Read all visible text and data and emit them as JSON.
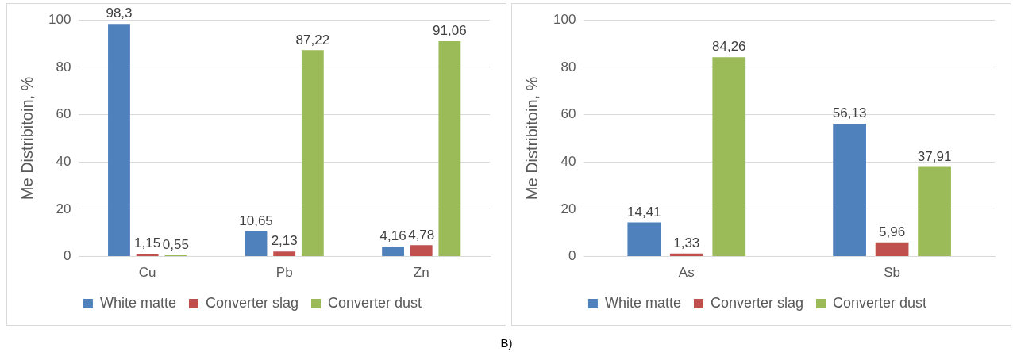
{
  "chart_data": [
    {
      "type": "bar",
      "ylabel": "Me Distribitoin, %",
      "categories": [
        "Cu",
        "Pb",
        "Zn"
      ],
      "ylim": [
        0,
        100
      ],
      "yticks": [
        0,
        20,
        40,
        60,
        80,
        100
      ],
      "grid": "y",
      "legend": "bottom",
      "series": [
        {
          "name": "White matte",
          "color": "#4f81bd",
          "values": [
            98.3,
            10.65,
            4.16
          ],
          "value_labels": [
            "98,3",
            "10,65",
            "4,16"
          ]
        },
        {
          "name": "Converter slag",
          "color": "#c0504d",
          "values": [
            1.15,
            2.13,
            4.78
          ],
          "value_labels": [
            "1,15",
            "2,13",
            "4,78"
          ]
        },
        {
          "name": "Converter dust",
          "color": "#9bbb59",
          "values": [
            0.55,
            87.22,
            91.06
          ],
          "value_labels": [
            "0,55",
            "87,22",
            "91,06"
          ]
        }
      ]
    },
    {
      "type": "bar",
      "ylabel": "Me Distribitoin, %",
      "categories": [
        "As",
        "Sb"
      ],
      "ylim": [
        0,
        100
      ],
      "yticks": [
        0,
        20,
        40,
        60,
        80,
        100
      ],
      "grid": "y",
      "legend": "bottom",
      "annotations": [
        "B)"
      ],
      "series": [
        {
          "name": "White matte",
          "color": "#4f81bd",
          "values": [
            14.41,
            56.13
          ],
          "value_labels": [
            "14,41",
            "56,13"
          ]
        },
        {
          "name": "Converter slag",
          "color": "#c0504d",
          "values": [
            1.33,
            5.96
          ],
          "value_labels": [
            "1,33",
            "5,96"
          ]
        },
        {
          "name": "Converter dust",
          "color": "#9bbb59",
          "values": [
            84.26,
            37.91
          ],
          "value_labels": [
            "84,26",
            "37,91"
          ]
        }
      ]
    }
  ]
}
